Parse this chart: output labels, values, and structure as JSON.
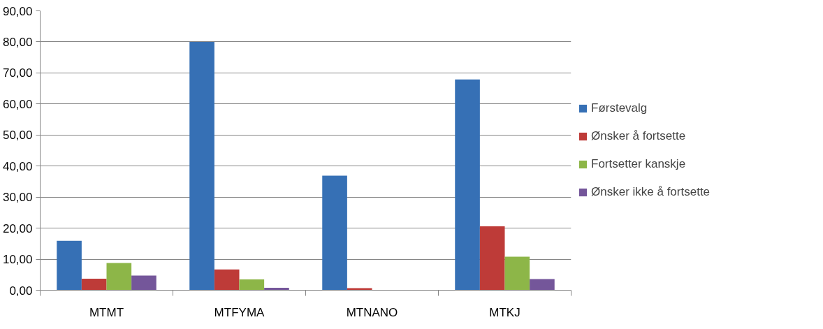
{
  "chart_data": {
    "type": "bar",
    "categories": [
      "MTMT",
      "MTFYMA",
      "MTNANO",
      "MTKJ"
    ],
    "series": [
      {
        "name": "Førstevalg",
        "color": "#3670b5",
        "values": [
          15.9,
          80,
          36.9,
          67.9
        ]
      },
      {
        "name": "Ønsker å fortsette",
        "color": "#be3b38",
        "values": [
          3.7,
          6.7,
          0.7,
          20.6
        ]
      },
      {
        "name": "Fortsetter kanskje",
        "color": "#8db648",
        "values": [
          8.8,
          3.5,
          0,
          10.8
        ]
      },
      {
        "name": "Ønsker ikke å fortsette",
        "color": "#74569a",
        "values": [
          4.7,
          0.8,
          0,
          3.6
        ]
      }
    ],
    "ylim": [
      0,
      90
    ],
    "yticks": [
      {
        "value": 0,
        "label": "0,00"
      },
      {
        "value": 10,
        "label": "10,00"
      },
      {
        "value": 20,
        "label": "20,00"
      },
      {
        "value": 30,
        "label": "30,00"
      },
      {
        "value": 40,
        "label": "40,00"
      },
      {
        "value": 50,
        "label": "50,00"
      },
      {
        "value": 60,
        "label": "60,00"
      },
      {
        "value": 70,
        "label": "70,00"
      },
      {
        "value": 80,
        "label": "80,00"
      },
      {
        "value": 90,
        "label": "90,00"
      }
    ],
    "grid": "y",
    "legend": "right"
  }
}
